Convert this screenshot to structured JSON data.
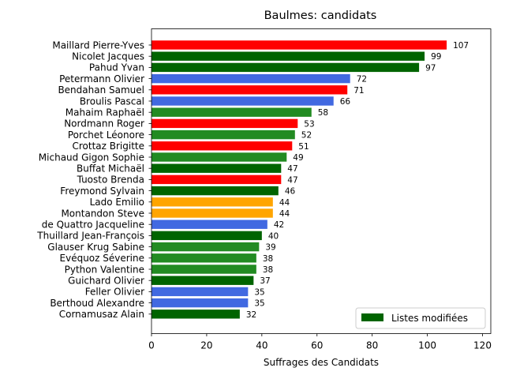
{
  "chart_data": {
    "type": "bar",
    "orientation": "horizontal",
    "title": "Baulmes: candidats",
    "xlabel": "Suffrages des Candidats",
    "ylabel": "",
    "xlim": [
      0,
      123
    ],
    "xticks": [
      0,
      20,
      40,
      60,
      80,
      100,
      120
    ],
    "grid": false,
    "legend": {
      "placement": "bottom-right",
      "entries": [
        {
          "label": "Listes modifiées",
          "color": "#006400"
        }
      ]
    },
    "bars": [
      {
        "name": "Maillard Pierre-Yves",
        "value": 107,
        "color": "#ff0000"
      },
      {
        "name": "Nicolet Jacques",
        "value": 99,
        "color": "#006400"
      },
      {
        "name": "Pahud Yvan",
        "value": 97,
        "color": "#006400"
      },
      {
        "name": "Petermann Olivier",
        "value": 72,
        "color": "#4169e1"
      },
      {
        "name": "Bendahan Samuel",
        "value": 71,
        "color": "#ff0000"
      },
      {
        "name": "Broulis Pascal",
        "value": 66,
        "color": "#4169e1"
      },
      {
        "name": "Mahaim Raphaël",
        "value": 58,
        "color": "#228b22"
      },
      {
        "name": "Nordmann Roger",
        "value": 53,
        "color": "#ff0000"
      },
      {
        "name": "Porchet Léonore",
        "value": 52,
        "color": "#228b22"
      },
      {
        "name": "Crottaz Brigitte",
        "value": 51,
        "color": "#ff0000"
      },
      {
        "name": "Michaud Gigon Sophie",
        "value": 49,
        "color": "#228b22"
      },
      {
        "name": "Buffat Michaël",
        "value": 47,
        "color": "#006400"
      },
      {
        "name": "Tuosto Brenda",
        "value": 47,
        "color": "#ff0000"
      },
      {
        "name": "Freymond Sylvain",
        "value": 46,
        "color": "#006400"
      },
      {
        "name": "Lado Emilio",
        "value": 44,
        "color": "#ffa500"
      },
      {
        "name": "Montandon Steve",
        "value": 44,
        "color": "#ffa500"
      },
      {
        "name": "de Quattro Jacqueline",
        "value": 42,
        "color": "#4169e1"
      },
      {
        "name": "Thuillard Jean-François",
        "value": 40,
        "color": "#006400"
      },
      {
        "name": "Glauser Krug Sabine",
        "value": 39,
        "color": "#228b22"
      },
      {
        "name": "Evéquoz Séverine",
        "value": 38,
        "color": "#228b22"
      },
      {
        "name": "Python Valentine",
        "value": 38,
        "color": "#228b22"
      },
      {
        "name": "Guichard Olivier",
        "value": 37,
        "color": "#006400"
      },
      {
        "name": "Feller Olivier",
        "value": 35,
        "color": "#4169e1"
      },
      {
        "name": "Berthoud Alexandre",
        "value": 35,
        "color": "#4169e1"
      },
      {
        "name": "Cornamusaz Alain",
        "value": 32,
        "color": "#006400"
      }
    ]
  }
}
